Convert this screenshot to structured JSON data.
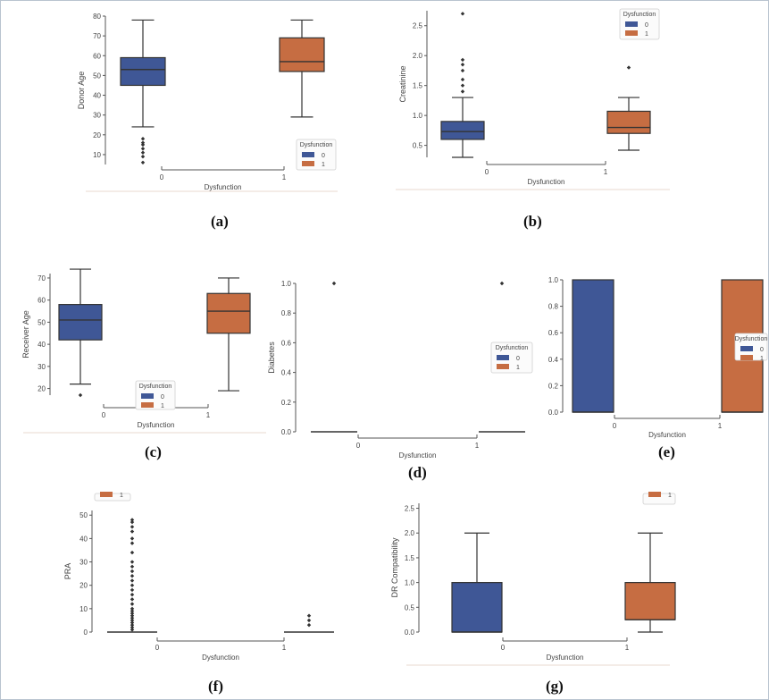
{
  "colors": {
    "group0": "#3f5796",
    "group1": "#c66d42",
    "axis": "#555555",
    "outline": "#333333"
  },
  "captions": {
    "a": "(a)",
    "b": "(b)",
    "c": "(c)",
    "d": "(d)",
    "e": "(e)",
    "f": "(f)",
    "g": "(g)"
  },
  "chart_data": [
    {
      "id": "a",
      "type": "box",
      "xlabel": "Dysfunction",
      "ylabel": "Donor Age",
      "categories": [
        "0",
        "1"
      ],
      "ylim": [
        5,
        80
      ],
      "yticks": [
        10,
        20,
        30,
        40,
        50,
        60,
        70,
        80
      ],
      "legend": {
        "title": "Dysfunction",
        "entries": [
          "0",
          "1"
        ],
        "placement": "lower-right"
      },
      "boxes": [
        {
          "cat": "0",
          "whislo": 24,
          "q1": 45,
          "med": 53,
          "q3": 59,
          "whishi": 78,
          "fliers": [
            6,
            9,
            11,
            13,
            15,
            16,
            18
          ]
        },
        {
          "cat": "1",
          "whislo": 29,
          "q1": 52,
          "med": 57,
          "q3": 69,
          "whishi": 78,
          "fliers": []
        }
      ]
    },
    {
      "id": "b",
      "type": "box",
      "xlabel": "Dysfunction",
      "ylabel": "Creatinine",
      "categories": [
        "0",
        "1"
      ],
      "ylim": [
        0.3,
        2.75
      ],
      "yticks": [
        0.5,
        1.0,
        1.5,
        2.0,
        2.5
      ],
      "legend": {
        "title": "Dysfunction",
        "entries": [
          "0",
          "1"
        ],
        "placement": "top-right"
      },
      "boxes": [
        {
          "cat": "0",
          "whislo": 0.3,
          "q1": 0.6,
          "med": 0.73,
          "q3": 0.9,
          "whishi": 1.3,
          "fliers": [
            1.4,
            1.5,
            1.6,
            1.75,
            1.85,
            1.93,
            2.7
          ]
        },
        {
          "cat": "1",
          "whislo": 0.42,
          "q1": 0.7,
          "med": 0.8,
          "q3": 1.07,
          "whishi": 1.3,
          "fliers": [
            1.8
          ]
        }
      ]
    },
    {
      "id": "c",
      "type": "box",
      "xlabel": "Dysfunction",
      "ylabel": "Receiver Age",
      "categories": [
        "0",
        "1"
      ],
      "ylim": [
        17,
        72
      ],
      "yticks": [
        20,
        30,
        40,
        50,
        60,
        70
      ],
      "legend": {
        "title": "Dysfunction",
        "entries": [
          "0",
          "1"
        ],
        "placement": "lower-center"
      },
      "boxes": [
        {
          "cat": "0",
          "whislo": 22,
          "q1": 42,
          "med": 51,
          "q3": 58,
          "whishi": 74,
          "fliers": [
            17
          ]
        },
        {
          "cat": "1",
          "whislo": 19,
          "q1": 45,
          "med": 55,
          "q3": 63,
          "whishi": 70,
          "fliers": []
        }
      ]
    },
    {
      "id": "d",
      "type": "box",
      "xlabel": "Dysfunction",
      "ylabel": "Diabetes",
      "categories": [
        "0",
        "1"
      ],
      "ylim": [
        0,
        1.0
      ],
      "yticks": [
        0.0,
        0.2,
        0.4,
        0.6,
        0.8,
        1.0
      ],
      "legend": {
        "title": "Dysfunction",
        "entries": [
          "0",
          "1"
        ],
        "placement": "right"
      },
      "boxes": [
        {
          "cat": "0",
          "whislo": 0,
          "q1": 0,
          "med": 0,
          "q3": 0,
          "whishi": 0,
          "fliers": [
            1.0
          ]
        },
        {
          "cat": "1",
          "whislo": 0,
          "q1": 0,
          "med": 0,
          "q3": 0,
          "whishi": 0,
          "fliers": [
            1.0
          ]
        }
      ]
    },
    {
      "id": "e",
      "type": "box",
      "xlabel": "Dysfunction",
      "ylabel": "",
      "categories": [
        "0",
        "1"
      ],
      "ylim": [
        0,
        1.0
      ],
      "yticks": [
        0.0,
        0.2,
        0.4,
        0.6,
        0.8,
        1.0
      ],
      "legend": {
        "title": "Dysfunction",
        "entries": [
          "0",
          "1"
        ],
        "placement": "right"
      },
      "boxes": [
        {
          "cat": "0",
          "whislo": 0,
          "q1": 0,
          "med": 0,
          "q3": 1.0,
          "whishi": 1.0,
          "fliers": []
        },
        {
          "cat": "1",
          "whislo": 0,
          "q1": 0,
          "med": 0,
          "q3": 1.0,
          "whishi": 1.0,
          "fliers": []
        }
      ]
    },
    {
      "id": "f",
      "type": "box",
      "xlabel": "Dysfunction",
      "ylabel": "PRA",
      "categories": [
        "0",
        "1"
      ],
      "ylim": [
        0,
        52
      ],
      "yticks": [
        0,
        10,
        20,
        30,
        40,
        50
      ],
      "legend": {
        "title": "",
        "entries": [
          "1"
        ],
        "placement": "top-left"
      },
      "boxes": [
        {
          "cat": "0",
          "whislo": 0,
          "q1": 0,
          "med": 0,
          "q3": 0,
          "whishi": 0,
          "fliers": [
            1,
            2,
            3,
            4,
            5,
            6,
            7,
            8,
            9,
            10,
            12,
            14,
            16,
            18,
            20,
            22,
            24,
            26,
            28,
            30,
            34,
            38,
            40,
            43,
            45,
            47,
            48
          ]
        },
        {
          "cat": "1",
          "whislo": 0,
          "q1": 0,
          "med": 0,
          "q3": 0,
          "whishi": 0,
          "fliers": [
            3,
            5,
            7
          ]
        }
      ]
    },
    {
      "id": "g",
      "type": "box",
      "xlabel": "Dysfunction",
      "ylabel": "DR Compatibility",
      "categories": [
        "0",
        "1"
      ],
      "ylim": [
        0,
        2.6
      ],
      "yticks": [
        0.0,
        0.5,
        1.0,
        1.5,
        2.0,
        2.5
      ],
      "legend": {
        "title": "",
        "entries": [
          "1"
        ],
        "placement": "top-right"
      },
      "boxes": [
        {
          "cat": "0",
          "whislo": 0,
          "q1": 0,
          "med": 0,
          "q3": 1.0,
          "whishi": 2.0,
          "fliers": []
        },
        {
          "cat": "1",
          "whislo": 0,
          "q1": 0.25,
          "med": 0.25,
          "q3": 1.0,
          "whishi": 2.0,
          "fliers": []
        }
      ]
    }
  ]
}
